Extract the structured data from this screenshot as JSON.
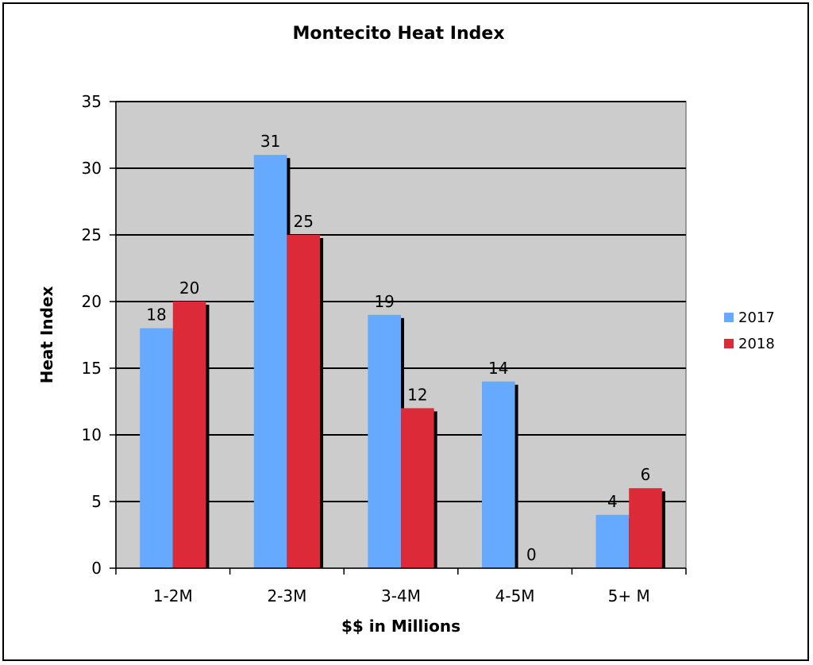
{
  "chart_data": {
    "type": "bar",
    "title": "Montecito  Heat Index",
    "xlabel": "$$ in Millions",
    "ylabel": "Heat Index",
    "categories": [
      "1-2M",
      "2-3M",
      "3-4M",
      "4-5M",
      "5+ M"
    ],
    "series": [
      {
        "name": "2017",
        "values": [
          18,
          31,
          19,
          14,
          4
        ],
        "color": "#66aaff"
      },
      {
        "name": "2018",
        "values": [
          20,
          25,
          12,
          0,
          6
        ],
        "color": "#dd2a38"
      }
    ],
    "ylim": [
      0,
      35
    ],
    "yticks": [
      0,
      5,
      10,
      15,
      20,
      25,
      30,
      35
    ],
    "grid": true,
    "legend_position": "right",
    "plot_background": "#cccccc"
  }
}
